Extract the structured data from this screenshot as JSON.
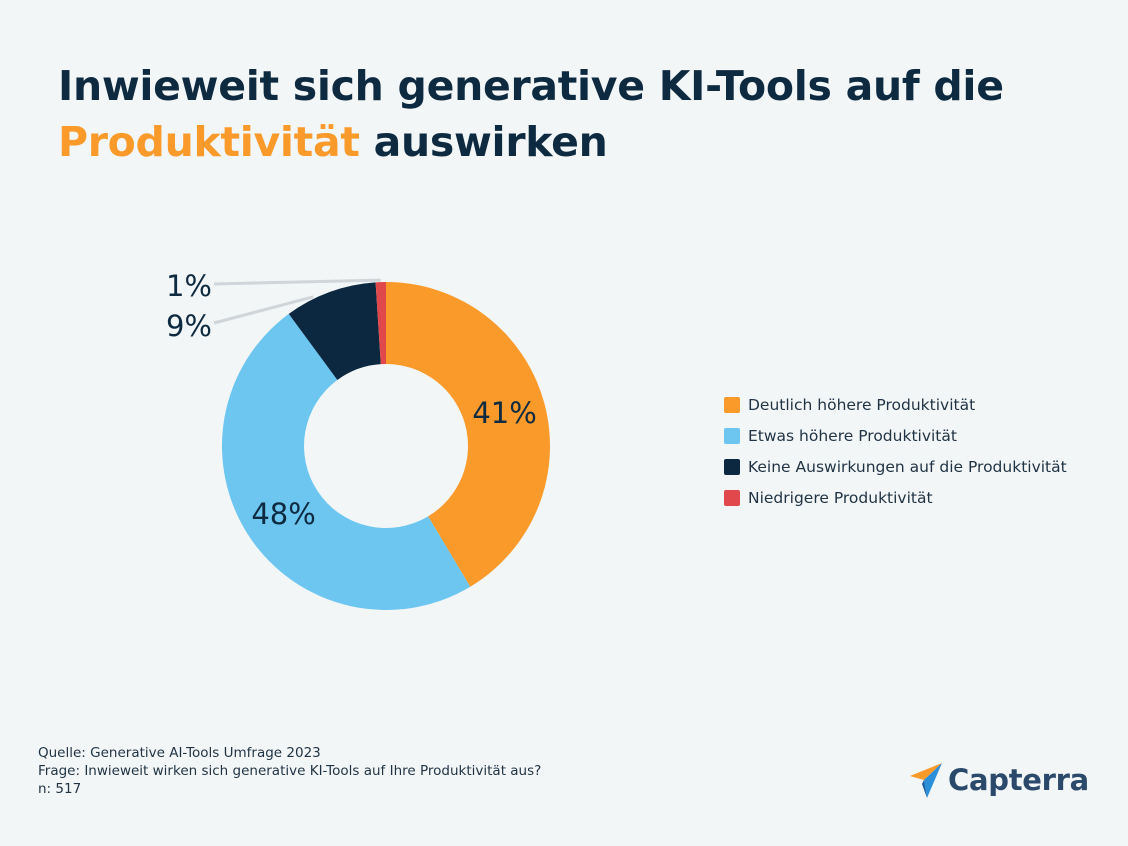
{
  "title": {
    "part1": "Inwieweit sich generative KI-Tools auf die",
    "highlight": "Produktivität",
    "part2": "auswirken"
  },
  "chart_data": {
    "type": "pie",
    "donut": true,
    "categories": [
      "Deutlich höhere Produktivität",
      "Etwas höhere Produktivität",
      "Keine Auswirkungen auf die Produktivität",
      "Niedrigere Produktivität"
    ],
    "values": [
      41,
      48,
      9,
      1
    ],
    "labels": [
      "41%",
      "48%",
      "9%",
      "1%"
    ],
    "colors": [
      "#f99a2b",
      "#6cc6ef",
      "#0b2840",
      "#e0484b"
    ],
    "legend_position": "right"
  },
  "footer": {
    "source": "Quelle: Generative AI-Tools Umfrage 2023",
    "question": "Frage: Inwieweit wirken sich generative KI-Tools auf Ihre Produktivität aus?",
    "n": "n: 517"
  },
  "logo": {
    "text": "Capterra",
    "icon": "capterra-arrow-icon"
  }
}
